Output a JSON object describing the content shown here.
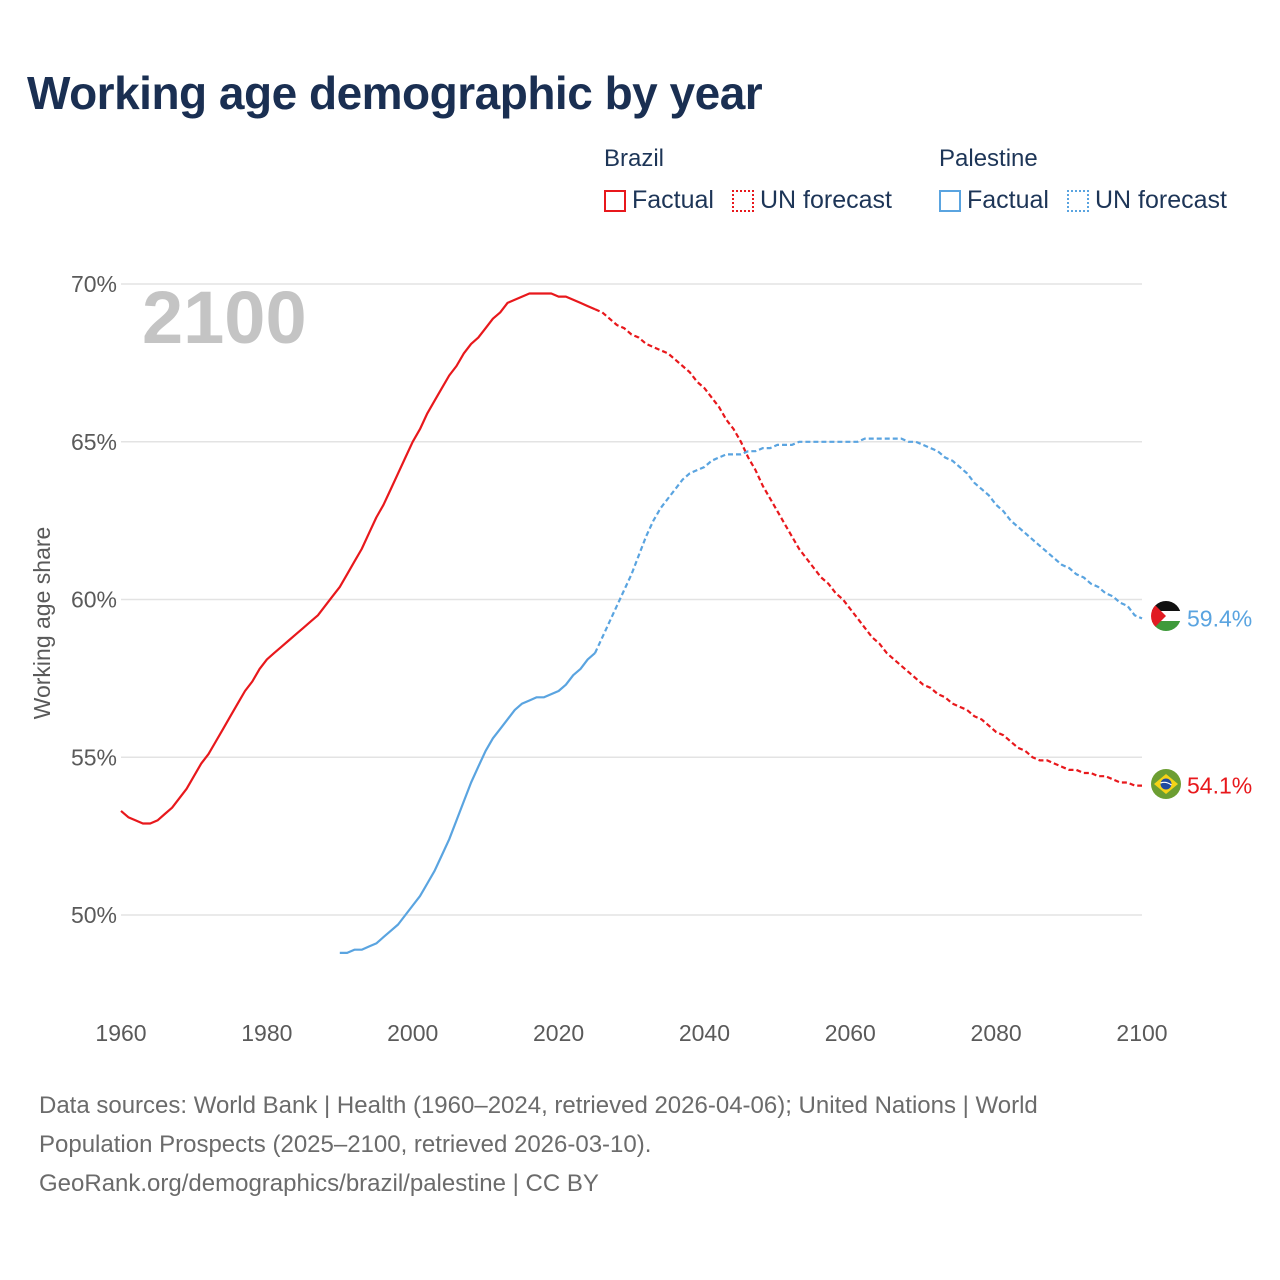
{
  "title": "Working age demographic by year",
  "year_watermark": "2100",
  "legend": {
    "groups": [
      {
        "name": "Brazil",
        "color": "#e8181c",
        "factual_label": "Factual",
        "forecast_label": "UN forecast"
      },
      {
        "name": "Palestine",
        "color": "#5aa4e0",
        "factual_label": "Factual",
        "forecast_label": "UN forecast"
      }
    ]
  },
  "sources": {
    "line1": "Data sources: World Bank | Health (1960–2024, retrieved 2026-04-06); United Nations | World",
    "line2": "Population Prospects (2025–2100, retrieved 2026-03-10).",
    "line3": "GeoRank.org/demographics/brazil/palestine | CC BY"
  },
  "chart_data": {
    "type": "line",
    "title": "Working age demographic by year",
    "xlabel": "",
    "ylabel": "Working age share",
    "xlim": [
      1960,
      2100
    ],
    "ylim": [
      47,
      71
    ],
    "x_ticks": [
      1960,
      1980,
      2000,
      2020,
      2040,
      2060,
      2080,
      2100
    ],
    "y_ticks": [
      50,
      55,
      60,
      65,
      70
    ],
    "y_tick_labels": [
      "50%",
      "55%",
      "60%",
      "65%",
      "70%"
    ],
    "grid": true,
    "forecast_start": 2025,
    "series": [
      {
        "name": "Brazil",
        "color": "#e8181c",
        "end_label": "54.1%",
        "flag": "brazil-flag",
        "points": [
          [
            1960,
            53.3
          ],
          [
            1961,
            53.1
          ],
          [
            1962,
            53.0
          ],
          [
            1963,
            52.9
          ],
          [
            1964,
            52.9
          ],
          [
            1965,
            53.0
          ],
          [
            1966,
            53.2
          ],
          [
            1967,
            53.4
          ],
          [
            1968,
            53.7
          ],
          [
            1969,
            54.0
          ],
          [
            1970,
            54.4
          ],
          [
            1971,
            54.8
          ],
          [
            1972,
            55.1
          ],
          [
            1973,
            55.5
          ],
          [
            1974,
            55.9
          ],
          [
            1975,
            56.3
          ],
          [
            1976,
            56.7
          ],
          [
            1977,
            57.1
          ],
          [
            1978,
            57.4
          ],
          [
            1979,
            57.8
          ],
          [
            1980,
            58.1
          ],
          [
            1981,
            58.3
          ],
          [
            1982,
            58.5
          ],
          [
            1983,
            58.7
          ],
          [
            1984,
            58.9
          ],
          [
            1985,
            59.1
          ],
          [
            1986,
            59.3
          ],
          [
            1987,
            59.5
          ],
          [
            1988,
            59.8
          ],
          [
            1989,
            60.1
          ],
          [
            1990,
            60.4
          ],
          [
            1991,
            60.8
          ],
          [
            1992,
            61.2
          ],
          [
            1993,
            61.6
          ],
          [
            1994,
            62.1
          ],
          [
            1995,
            62.6
          ],
          [
            1996,
            63.0
          ],
          [
            1997,
            63.5
          ],
          [
            1998,
            64.0
          ],
          [
            1999,
            64.5
          ],
          [
            2000,
            65.0
          ],
          [
            2001,
            65.4
          ],
          [
            2002,
            65.9
          ],
          [
            2003,
            66.3
          ],
          [
            2004,
            66.7
          ],
          [
            2005,
            67.1
          ],
          [
            2006,
            67.4
          ],
          [
            2007,
            67.8
          ],
          [
            2008,
            68.1
          ],
          [
            2009,
            68.3
          ],
          [
            2010,
            68.6
          ],
          [
            2011,
            68.9
          ],
          [
            2012,
            69.1
          ],
          [
            2013,
            69.4
          ],
          [
            2014,
            69.5
          ],
          [
            2015,
            69.6
          ],
          [
            2016,
            69.7
          ],
          [
            2017,
            69.7
          ],
          [
            2018,
            69.7
          ],
          [
            2019,
            69.7
          ],
          [
            2020,
            69.6
          ],
          [
            2021,
            69.6
          ],
          [
            2022,
            69.5
          ],
          [
            2023,
            69.4
          ],
          [
            2024,
            69.3
          ],
          [
            2025,
            69.2
          ],
          [
            2026,
            69.1
          ],
          [
            2027,
            68.9
          ],
          [
            2028,
            68.7
          ],
          [
            2029,
            68.6
          ],
          [
            2030,
            68.4
          ],
          [
            2031,
            68.3
          ],
          [
            2032,
            68.1
          ],
          [
            2033,
            68.0
          ],
          [
            2034,
            67.9
          ],
          [
            2035,
            67.8
          ],
          [
            2036,
            67.6
          ],
          [
            2037,
            67.4
          ],
          [
            2038,
            67.2
          ],
          [
            2039,
            66.9
          ],
          [
            2040,
            66.7
          ],
          [
            2041,
            66.4
          ],
          [
            2042,
            66.1
          ],
          [
            2043,
            65.7
          ],
          [
            2044,
            65.4
          ],
          [
            2045,
            65.0
          ],
          [
            2046,
            64.5
          ],
          [
            2047,
            64.1
          ],
          [
            2048,
            63.6
          ],
          [
            2049,
            63.2
          ],
          [
            2050,
            62.8
          ],
          [
            2051,
            62.4
          ],
          [
            2052,
            62.0
          ],
          [
            2053,
            61.6
          ],
          [
            2054,
            61.3
          ],
          [
            2055,
            61.0
          ],
          [
            2056,
            60.7
          ],
          [
            2057,
            60.5
          ],
          [
            2058,
            60.2
          ],
          [
            2059,
            60.0
          ],
          [
            2060,
            59.7
          ],
          [
            2061,
            59.4
          ],
          [
            2062,
            59.1
          ],
          [
            2063,
            58.8
          ],
          [
            2064,
            58.6
          ],
          [
            2065,
            58.3
          ],
          [
            2066,
            58.1
          ],
          [
            2067,
            57.9
          ],
          [
            2068,
            57.7
          ],
          [
            2069,
            57.5
          ],
          [
            2070,
            57.3
          ],
          [
            2071,
            57.2
          ],
          [
            2072,
            57.0
          ],
          [
            2073,
            56.9
          ],
          [
            2074,
            56.7
          ],
          [
            2075,
            56.6
          ],
          [
            2076,
            56.5
          ],
          [
            2077,
            56.3
          ],
          [
            2078,
            56.2
          ],
          [
            2079,
            56.0
          ],
          [
            2080,
            55.8
          ],
          [
            2081,
            55.7
          ],
          [
            2082,
            55.5
          ],
          [
            2083,
            55.3
          ],
          [
            2084,
            55.2
          ],
          [
            2085,
            55.0
          ],
          [
            2086,
            54.9
          ],
          [
            2087,
            54.9
          ],
          [
            2088,
            54.8
          ],
          [
            2089,
            54.7
          ],
          [
            2090,
            54.6
          ],
          [
            2091,
            54.6
          ],
          [
            2092,
            54.5
          ],
          [
            2093,
            54.5
          ],
          [
            2094,
            54.4
          ],
          [
            2095,
            54.4
          ],
          [
            2096,
            54.3
          ],
          [
            2097,
            54.2
          ],
          [
            2098,
            54.2
          ],
          [
            2099,
            54.1
          ],
          [
            2100,
            54.1
          ]
        ]
      },
      {
        "name": "Palestine",
        "color": "#5aa4e0",
        "end_label": "59.4%",
        "flag": "palestine-flag",
        "points": [
          [
            1990,
            48.8
          ],
          [
            1991,
            48.8
          ],
          [
            1992,
            48.9
          ],
          [
            1993,
            48.9
          ],
          [
            1994,
            49.0
          ],
          [
            1995,
            49.1
          ],
          [
            1996,
            49.3
          ],
          [
            1997,
            49.5
          ],
          [
            1998,
            49.7
          ],
          [
            1999,
            50.0
          ],
          [
            2000,
            50.3
          ],
          [
            2001,
            50.6
          ],
          [
            2002,
            51.0
          ],
          [
            2003,
            51.4
          ],
          [
            2004,
            51.9
          ],
          [
            2005,
            52.4
          ],
          [
            2006,
            53.0
          ],
          [
            2007,
            53.6
          ],
          [
            2008,
            54.2
          ],
          [
            2009,
            54.7
          ],
          [
            2010,
            55.2
          ],
          [
            2011,
            55.6
          ],
          [
            2012,
            55.9
          ],
          [
            2013,
            56.2
          ],
          [
            2014,
            56.5
          ],
          [
            2015,
            56.7
          ],
          [
            2016,
            56.8
          ],
          [
            2017,
            56.9
          ],
          [
            2018,
            56.9
          ],
          [
            2019,
            57.0
          ],
          [
            2020,
            57.1
          ],
          [
            2021,
            57.3
          ],
          [
            2022,
            57.6
          ],
          [
            2023,
            57.8
          ],
          [
            2024,
            58.1
          ],
          [
            2025,
            58.3
          ],
          [
            2026,
            58.8
          ],
          [
            2027,
            59.3
          ],
          [
            2028,
            59.8
          ],
          [
            2029,
            60.3
          ],
          [
            2030,
            60.8
          ],
          [
            2031,
            61.4
          ],
          [
            2032,
            62.0
          ],
          [
            2033,
            62.5
          ],
          [
            2034,
            62.9
          ],
          [
            2035,
            63.2
          ],
          [
            2036,
            63.5
          ],
          [
            2037,
            63.8
          ],
          [
            2038,
            64.0
          ],
          [
            2039,
            64.1
          ],
          [
            2040,
            64.2
          ],
          [
            2041,
            64.4
          ],
          [
            2042,
            64.5
          ],
          [
            2043,
            64.6
          ],
          [
            2044,
            64.6
          ],
          [
            2045,
            64.6
          ],
          [
            2046,
            64.7
          ],
          [
            2047,
            64.7
          ],
          [
            2048,
            64.8
          ],
          [
            2049,
            64.8
          ],
          [
            2050,
            64.9
          ],
          [
            2051,
            64.9
          ],
          [
            2052,
            64.9
          ],
          [
            2053,
            65.0
          ],
          [
            2054,
            65.0
          ],
          [
            2055,
            65.0
          ],
          [
            2056,
            65.0
          ],
          [
            2057,
            65.0
          ],
          [
            2058,
            65.0
          ],
          [
            2059,
            65.0
          ],
          [
            2060,
            65.0
          ],
          [
            2061,
            65.0
          ],
          [
            2062,
            65.1
          ],
          [
            2063,
            65.1
          ],
          [
            2064,
            65.1
          ],
          [
            2065,
            65.1
          ],
          [
            2066,
            65.1
          ],
          [
            2067,
            65.1
          ],
          [
            2068,
            65.0
          ],
          [
            2069,
            65.0
          ],
          [
            2070,
            64.9
          ],
          [
            2071,
            64.8
          ],
          [
            2072,
            64.7
          ],
          [
            2073,
            64.5
          ],
          [
            2074,
            64.4
          ],
          [
            2075,
            64.2
          ],
          [
            2076,
            64.0
          ],
          [
            2077,
            63.7
          ],
          [
            2078,
            63.5
          ],
          [
            2079,
            63.3
          ],
          [
            2080,
            63.0
          ],
          [
            2081,
            62.8
          ],
          [
            2082,
            62.5
          ],
          [
            2083,
            62.3
          ],
          [
            2084,
            62.1
          ],
          [
            2085,
            61.9
          ],
          [
            2086,
            61.7
          ],
          [
            2087,
            61.5
          ],
          [
            2088,
            61.3
          ],
          [
            2089,
            61.1
          ],
          [
            2090,
            61.0
          ],
          [
            2091,
            60.8
          ],
          [
            2092,
            60.7
          ],
          [
            2093,
            60.5
          ],
          [
            2094,
            60.4
          ],
          [
            2095,
            60.2
          ],
          [
            2096,
            60.1
          ],
          [
            2097,
            59.9
          ],
          [
            2098,
            59.8
          ],
          [
            2099,
            59.5
          ],
          [
            2100,
            59.4
          ]
        ]
      }
    ]
  }
}
